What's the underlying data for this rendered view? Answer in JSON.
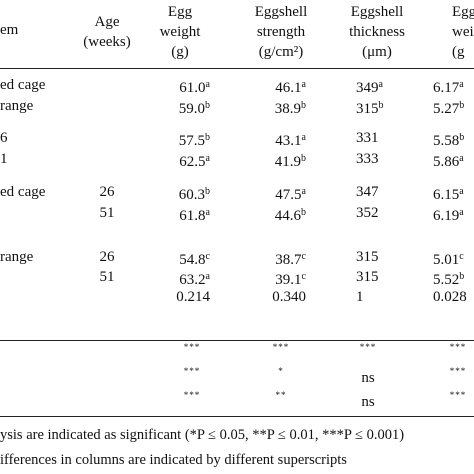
{
  "headers": [
    {
      "lines": [
        "em"
      ]
    },
    {
      "lines": [
        "Age",
        "(weeks)"
      ]
    },
    {
      "lines": [
        "Egg",
        "weight",
        "(g)"
      ]
    },
    {
      "lines": [
        "Eggshell",
        "strength",
        "(g/cm²)"
      ]
    },
    {
      "lines": [
        "Eggshell",
        "thickness",
        "(μm)"
      ]
    },
    {
      "lines": [
        "Eggsh",
        "weigh",
        "(g"
      ]
    }
  ],
  "rows": [
    {
      "label": "ed cage",
      "age": "",
      "cells": [
        [
          "61.0",
          "a"
        ],
        [
          "46.1",
          "a"
        ],
        [
          "349",
          "a"
        ],
        [
          "6.17",
          "a"
        ]
      ]
    },
    {
      "label": "range",
      "age": "",
      "cells": [
        [
          "59.0",
          "b"
        ],
        [
          "38.9",
          "b"
        ],
        [
          "315",
          "b"
        ],
        [
          "5.27",
          "b"
        ]
      ]
    },
    {
      "label": "6",
      "age": "",
      "cells": [
        [
          "57.5",
          "b"
        ],
        [
          "43.1",
          "a"
        ],
        [
          "331",
          ""
        ],
        [
          "5.58",
          "b"
        ]
      ]
    },
    {
      "label": "1",
      "age": "",
      "cells": [
        [
          "62.5",
          "a"
        ],
        [
          "41.9",
          "b"
        ],
        [
          "333",
          ""
        ],
        [
          "5.86",
          "a"
        ]
      ]
    },
    {
      "label": "ed cage",
      "age": "26",
      "cells": [
        [
          "60.3",
          "b"
        ],
        [
          "47.5",
          "a"
        ],
        [
          "347",
          ""
        ],
        [
          "6.15",
          "a"
        ]
      ]
    },
    {
      "label": "",
      "age": "51",
      "cells": [
        [
          "61.8",
          "a"
        ],
        [
          "44.6",
          "b"
        ],
        [
          "352",
          ""
        ],
        [
          "6.19",
          "a"
        ]
      ]
    },
    {
      "label": "range",
      "age": "26",
      "cells": [
        [
          "54.8",
          "c"
        ],
        [
          "38.7",
          "c"
        ],
        [
          "315",
          ""
        ],
        [
          "5.01",
          "c"
        ]
      ]
    },
    {
      "label": "",
      "age": "51",
      "cells": [
        [
          "63.2",
          "a"
        ],
        [
          "39.1",
          "c"
        ],
        [
          "315",
          ""
        ],
        [
          "5.52",
          "b"
        ]
      ]
    },
    {
      "label": "",
      "age": "",
      "cells": [
        [
          "0.214",
          ""
        ],
        [
          "0.340",
          ""
        ],
        [
          "1",
          ""
        ],
        [
          "0.028",
          ""
        ]
      ]
    }
  ],
  "significance": [
    [
      "***",
      "***",
      "***",
      "***"
    ],
    [
      "***",
      "*",
      "ns",
      "***"
    ],
    [
      "***",
      "**",
      "ns",
      "***"
    ]
  ],
  "footnotes": [
    "ysis are indicated as significant (*P ≤ 0.05, **P ≤ 0.01, ***P ≤ 0.001)",
    "ifferences in columns are indicated by different superscripts"
  ]
}
